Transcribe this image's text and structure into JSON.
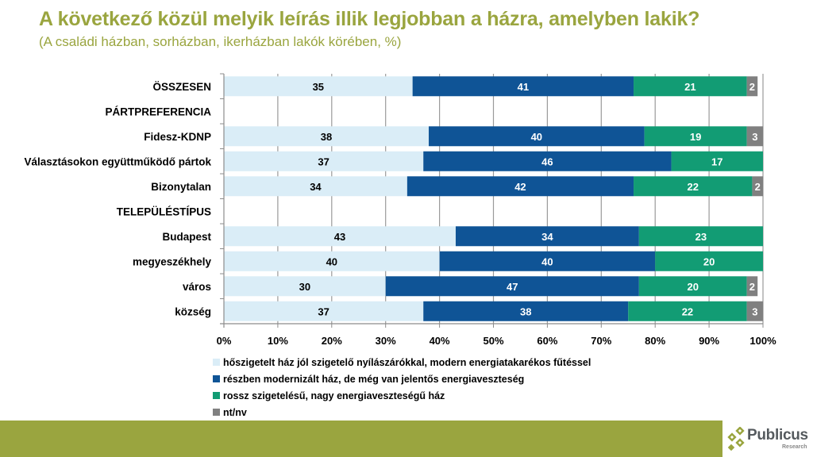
{
  "title": "A következő közül melyik leírás illik legjobban a házra, amelyben lakik?",
  "subtitle": "(A családi házban, sorházban, ikerházban lakók körében, %)",
  "colors": {
    "series": [
      "#daedf7",
      "#0f5496",
      "#129c74",
      "#808080"
    ],
    "series_text": [
      "#000000",
      "#ffffff",
      "#ffffff",
      "#ffffff"
    ],
    "title": "#9aa53f",
    "footer": "#9aa53f"
  },
  "chart_data": {
    "type": "bar",
    "orientation": "horizontal",
    "stacked": "100%",
    "title": "A következő közül melyik leírás illik legjobban a házra, amelyben lakik?",
    "subtitle": "(A családi házban, sorházban, ikerházban lakók körében, %)",
    "xlabel": "",
    "ylabel": "",
    "xlim": [
      0,
      100
    ],
    "x_ticks": [
      "0%",
      "10%",
      "20%",
      "30%",
      "40%",
      "50%",
      "60%",
      "70%",
      "80%",
      "90%",
      "100%"
    ],
    "grid": "vertical",
    "legend_position": "bottom",
    "categories": [
      "ÖSSZESEN",
      "PÁRTPREFERENCIA",
      "Fidesz-KDNP",
      "Választásokon együttműködő pártok",
      "Bizonytalan",
      "TELEPÜLÉSTÍPUS",
      "Budapest",
      "megyeszékhely",
      "város",
      "község"
    ],
    "series": [
      {
        "name": "hőszigetelt ház jól szigetelő nyílászárókkal, modern energiatakarékos fűtéssel",
        "values": [
          35,
          null,
          38,
          37,
          34,
          null,
          43,
          40,
          30,
          37
        ]
      },
      {
        "name": "részben modernizált ház, de még van jelentős energiaveszteség",
        "values": [
          41,
          null,
          40,
          46,
          42,
          null,
          34,
          40,
          47,
          38
        ]
      },
      {
        "name": "rossz szigetelésű, nagy energiaveszteségű ház",
        "values": [
          21,
          null,
          19,
          17,
          22,
          null,
          23,
          20,
          20,
          22
        ]
      },
      {
        "name": "nt/nv",
        "values": [
          2,
          null,
          3,
          0,
          2,
          null,
          0,
          0,
          2,
          3
        ]
      }
    ]
  },
  "logo": {
    "name": "Publicus",
    "sub": "Research"
  }
}
